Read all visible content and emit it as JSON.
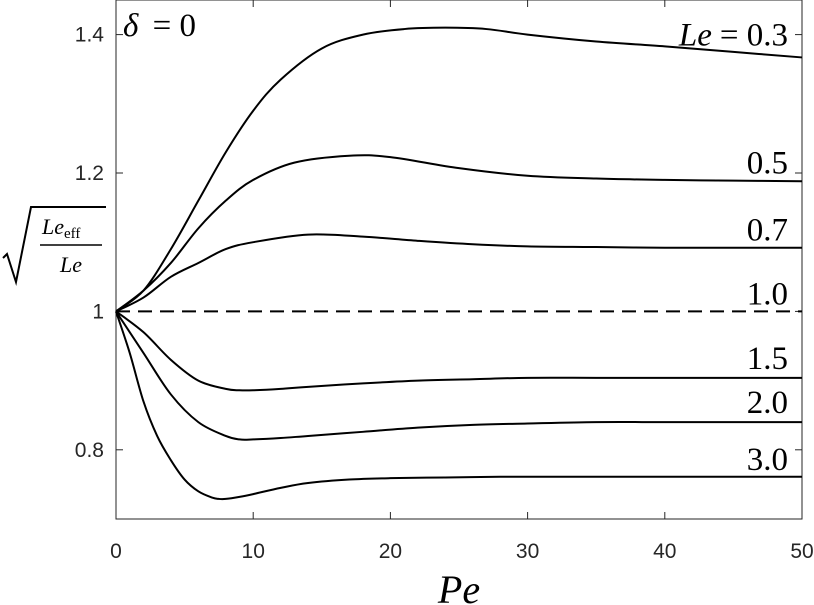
{
  "chart_data": {
    "type": "line",
    "title": "",
    "xlabel": "Pe",
    "ylabel": "√(Le_eff / Le)",
    "ylabel_parts": {
      "num_main": "Le",
      "num_sub": "eff",
      "den": "Le"
    },
    "annotation": "δ = 0",
    "annotation_parts": {
      "symbol": "δ",
      "eq": "= 0"
    },
    "xlim": [
      0,
      50
    ],
    "ylim": [
      0.7,
      1.45
    ],
    "xticks": [
      0,
      10,
      20,
      30,
      40,
      50
    ],
    "xtick_labels": [
      "0",
      "10",
      "20",
      "30",
      "40",
      "50"
    ],
    "yticks": [
      0.8,
      1.0,
      1.2,
      1.4
    ],
    "ytick_labels": [
      "0.8",
      "1",
      "1.2",
      "1.4"
    ],
    "grid": false,
    "legend": "none",
    "label_prefix": {
      "var": "Le",
      "eq": "= "
    },
    "series": [
      {
        "label": "0.3",
        "x": [
          0,
          2,
          4,
          6,
          8,
          10,
          12,
          15,
          18,
          21,
          24,
          27,
          30,
          35,
          40,
          45,
          50
        ],
        "y": [
          1.0,
          1.03,
          1.09,
          1.16,
          1.23,
          1.29,
          1.335,
          1.38,
          1.4,
          1.408,
          1.41,
          1.408,
          1.4,
          1.39,
          1.383,
          1.375,
          1.367
        ]
      },
      {
        "label": "0.5",
        "x": [
          0,
          2,
          4,
          6,
          8,
          10,
          13,
          17,
          20,
          25,
          30,
          35,
          40,
          45,
          50
        ],
        "y": [
          1.0,
          1.03,
          1.07,
          1.12,
          1.16,
          1.19,
          1.215,
          1.225,
          1.223,
          1.207,
          1.196,
          1.192,
          1.19,
          1.189,
          1.188
        ]
      },
      {
        "label": "0.7",
        "x": [
          0,
          2,
          4,
          6,
          8,
          10,
          14,
          18,
          22,
          26,
          30,
          35,
          40,
          45,
          50
        ],
        "y": [
          1.0,
          1.02,
          1.05,
          1.07,
          1.09,
          1.1,
          1.111,
          1.108,
          1.102,
          1.097,
          1.094,
          1.093,
          1.092,
          1.092,
          1.092
        ]
      },
      {
        "label": "1.0",
        "dashed": true,
        "x": [
          0,
          50
        ],
        "y": [
          1.0,
          1.0
        ]
      },
      {
        "label": "1.5",
        "x": [
          0,
          2,
          4,
          6,
          8,
          9,
          10,
          12,
          14,
          18,
          22,
          26,
          30,
          35,
          40,
          45,
          50
        ],
        "y": [
          1.0,
          0.97,
          0.93,
          0.9,
          0.888,
          0.886,
          0.886,
          0.888,
          0.891,
          0.896,
          0.9,
          0.902,
          0.904,
          0.904,
          0.904,
          0.904,
          0.904
        ]
      },
      {
        "label": "2.0",
        "x": [
          0,
          2,
          4,
          6,
          8,
          9,
          10,
          12,
          14,
          18,
          22,
          26,
          30,
          35,
          40,
          45,
          50
        ],
        "y": [
          1.0,
          0.94,
          0.88,
          0.84,
          0.82,
          0.815,
          0.815,
          0.817,
          0.82,
          0.826,
          0.832,
          0.836,
          0.838,
          0.84,
          0.84,
          0.84,
          0.84
        ]
      },
      {
        "label": "3.0",
        "x": [
          0,
          1,
          2,
          3,
          4,
          5,
          6,
          7,
          7.5,
          8,
          9,
          10,
          12,
          14,
          17,
          20,
          24,
          28,
          32,
          36,
          40,
          45,
          50
        ],
        "y": [
          1.0,
          0.94,
          0.87,
          0.82,
          0.785,
          0.757,
          0.74,
          0.731,
          0.729,
          0.729,
          0.732,
          0.736,
          0.745,
          0.752,
          0.757,
          0.759,
          0.76,
          0.761,
          0.761,
          0.761,
          0.761,
          0.761,
          0.761
        ]
      }
    ]
  }
}
